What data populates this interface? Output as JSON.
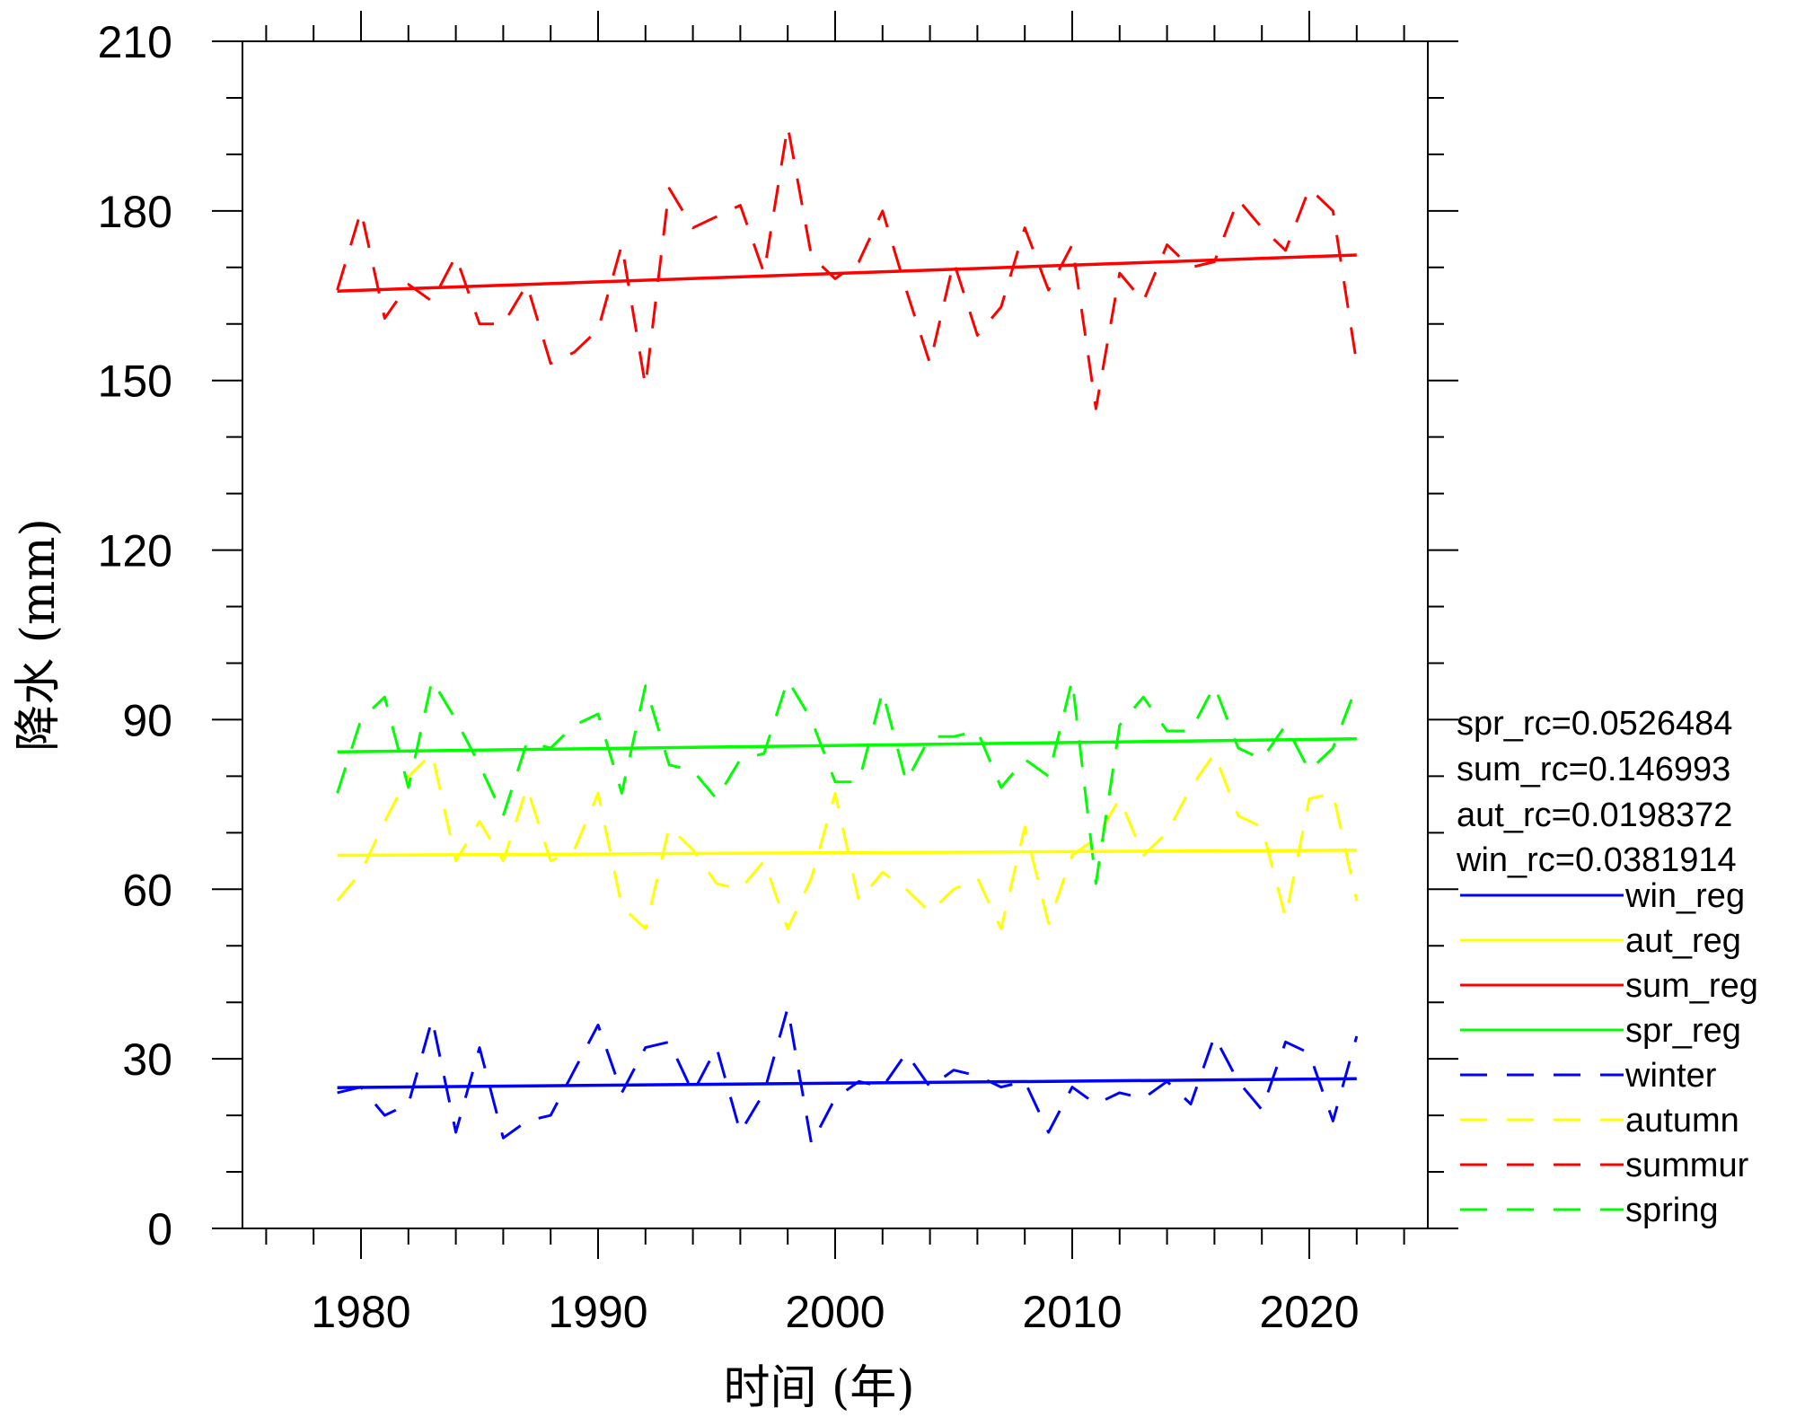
{
  "chart_data": {
    "type": "line",
    "title": "",
    "xlabel": "时间 (年)",
    "ylabel": "降水 (mm)",
    "xlim": [
      1975,
      2025
    ],
    "ylim": [
      0,
      210
    ],
    "x_ticks": [
      1980,
      1990,
      2000,
      2010,
      2020
    ],
    "y_ticks": [
      0,
      30,
      60,
      90,
      120,
      150,
      180,
      210
    ],
    "legend_placement": "right",
    "annotations": [
      "spr_rc=0.0526484",
      "sum_rc=0.146993",
      "aut_rc=0.0198372",
      "win_rc=0.0381914"
    ],
    "x": [
      1979,
      1980,
      1981,
      1982,
      1983,
      1984,
      1985,
      1986,
      1987,
      1988,
      1989,
      1990,
      1991,
      1992,
      1993,
      1994,
      1995,
      1996,
      1997,
      1998,
      1999,
      2000,
      2001,
      2002,
      2003,
      2004,
      2005,
      2006,
      2007,
      2008,
      2009,
      2010,
      2011,
      2012,
      2013,
      2014,
      2015,
      2016,
      2017,
      2018,
      2019,
      2020,
      2021,
      2022
    ],
    "series": [
      {
        "name": "winter",
        "style": "dashed",
        "color": "#0000ff",
        "values": [
          24,
          25,
          20,
          22,
          37,
          17,
          32,
          16,
          19,
          20,
          28,
          36,
          24,
          32,
          33,
          24,
          32,
          17,
          24,
          39,
          15,
          23,
          26,
          25,
          31,
          25,
          28,
          27,
          25,
          26,
          17,
          25,
          22,
          24,
          23,
          26,
          22,
          34,
          26,
          21,
          33,
          31,
          19,
          34
        ]
      },
      {
        "name": "autumn",
        "style": "dashed",
        "color": "#ffff00",
        "values": [
          58,
          63,
          72,
          80,
          84,
          65,
          72,
          65,
          78,
          65,
          67,
          77,
          57,
          53,
          71,
          67,
          61,
          60,
          65,
          53,
          62,
          77,
          58,
          63,
          60,
          56,
          60,
          62,
          53,
          71,
          54,
          66,
          69,
          76,
          66,
          70,
          78,
          84,
          73,
          71,
          55,
          76,
          77,
          58
        ]
      },
      {
        "name": "summur",
        "style": "dashed",
        "color": "#ff0000",
        "values": [
          166,
          180,
          161,
          167,
          164,
          172,
          160,
          160,
          167,
          153,
          155,
          159,
          174,
          149,
          184,
          177,
          179,
          181,
          169,
          195,
          172,
          168,
          171,
          180,
          166,
          153,
          171,
          158,
          163,
          177,
          166,
          174,
          145,
          169,
          164,
          174,
          170,
          171,
          182,
          177,
          173,
          184,
          180,
          153
        ]
      },
      {
        "name": "spring",
        "style": "dashed",
        "color": "#00ff00",
        "values": [
          77,
          90,
          94,
          78,
          97,
          90,
          82,
          73,
          86,
          85,
          89,
          91,
          77,
          96,
          82,
          81,
          76,
          83,
          84,
          97,
          90,
          79,
          79,
          95,
          79,
          87,
          87,
          88,
          78,
          83,
          80,
          97,
          61,
          89,
          94,
          88,
          88,
          96,
          85,
          83,
          89,
          81,
          85,
          96
        ]
      },
      {
        "name": "win_reg",
        "style": "solid",
        "color": "#0000ff",
        "x": [
          1979,
          2022
        ],
        "values": [
          24.9,
          26.5
        ]
      },
      {
        "name": "aut_reg",
        "style": "solid",
        "color": "#ffff00",
        "x": [
          1979,
          2022
        ],
        "values": [
          66.0,
          66.9
        ]
      },
      {
        "name": "sum_reg",
        "style": "solid",
        "color": "#ff0000",
        "x": [
          1979,
          2022
        ],
        "values": [
          165.8,
          172.2
        ]
      },
      {
        "name": "spr_reg",
        "style": "solid",
        "color": "#00ff00",
        "x": [
          1979,
          2022
        ],
        "values": [
          84.3,
          86.6
        ]
      }
    ],
    "legend_order": [
      "win_reg",
      "aut_reg",
      "sum_reg",
      "spr_reg",
      "winter",
      "autumn",
      "summur",
      "spring"
    ]
  }
}
